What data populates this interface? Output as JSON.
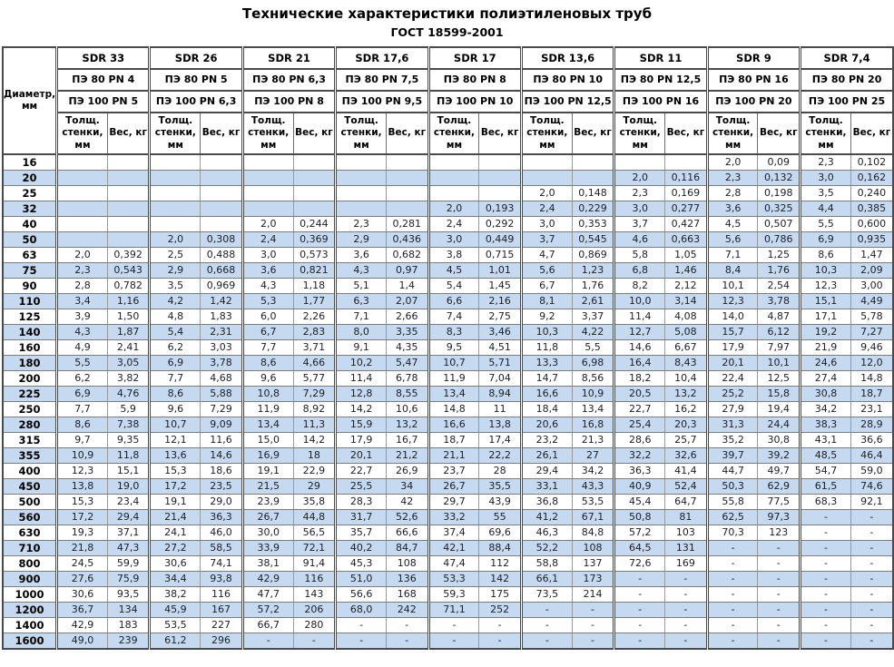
{
  "title": "Технические характеристики полиэтиленовых труб",
  "subtitle": "ГОСТ 18599-2001",
  "colors": {
    "row_alt_background": "#c5d9f1",
    "border_dark": "#4a4a4a",
    "border_light": "#9a9a9a",
    "text": "#1c1f26"
  },
  "table": {
    "diameter_header": "Диаметр, мм",
    "thickness_header": "Толщ. стенки, мм",
    "weight_header": "Вес, кг",
    "groups": [
      {
        "sdr": "SDR 33",
        "pe80": "ПЭ 80 PN 4",
        "pe100": "ПЭ 100 PN 5"
      },
      {
        "sdr": "SDR 26",
        "pe80": "ПЭ 80 PN 5",
        "pe100": "ПЭ 100 PN 6,3"
      },
      {
        "sdr": "SDR 21",
        "pe80": "ПЭ 80 PN 6,3",
        "pe100": "ПЭ 100 PN 8"
      },
      {
        "sdr": "SDR 17,6",
        "pe80": "ПЭ 80 PN 7,5",
        "pe100": "ПЭ 100 PN 9,5"
      },
      {
        "sdr": "SDR 17",
        "pe80": "ПЭ 80 PN 8",
        "pe100": "ПЭ 100 PN 10"
      },
      {
        "sdr": "SDR 13,6",
        "pe80": "ПЭ 80 PN 10",
        "pe100": "ПЭ 100 PN 12,5"
      },
      {
        "sdr": "SDR 11",
        "pe80": "ПЭ 80 PN 12,5",
        "pe100": "ПЭ 100 PN 16"
      },
      {
        "sdr": "SDR 9",
        "pe80": "ПЭ 80 PN 16",
        "pe100": "ПЭ 100 PN 20"
      },
      {
        "sdr": "SDR 7,4",
        "pe80": "ПЭ 80 PN 20",
        "pe100": "ПЭ 100 PN 25"
      }
    ],
    "rows": [
      {
        "d": "16",
        "v": [
          "",
          "",
          "",
          "",
          "",
          "",
          "",
          "",
          "",
          "",
          "",
          "",
          "",
          "",
          "2,0",
          "0,09",
          "2,3",
          "0,102"
        ]
      },
      {
        "d": "20",
        "v": [
          "",
          "",
          "",
          "",
          "",
          "",
          "",
          "",
          "",
          "",
          "",
          "",
          "2,0",
          "0,116",
          "2,3",
          "0,132",
          "3,0",
          "0,162"
        ]
      },
      {
        "d": "25",
        "v": [
          "",
          "",
          "",
          "",
          "",
          "",
          "",
          "",
          "",
          "",
          "2,0",
          "0,148",
          "2,3",
          "0,169",
          "2,8",
          "0,198",
          "3,5",
          "0,240"
        ]
      },
      {
        "d": "32",
        "v": [
          "",
          "",
          "",
          "",
          "",
          "",
          "",
          "",
          "2,0",
          "0,193",
          "2,4",
          "0,229",
          "3,0",
          "0,277",
          "3,6",
          "0,325",
          "4,4",
          "0,385"
        ]
      },
      {
        "d": "40",
        "v": [
          "",
          "",
          "",
          "",
          "2,0",
          "0,244",
          "2,3",
          "0,281",
          "2,4",
          "0,292",
          "3,0",
          "0,353",
          "3,7",
          "0,427",
          "4,5",
          "0,507",
          "5,5",
          "0,600"
        ]
      },
      {
        "d": "50",
        "v": [
          "",
          "",
          "2,0",
          "0,308",
          "2,4",
          "0,369",
          "2,9",
          "0,436",
          "3,0",
          "0,449",
          "3,7",
          "0,545",
          "4,6",
          "0,663",
          "5,6",
          "0,786",
          "6,9",
          "0,935"
        ]
      },
      {
        "d": "63",
        "v": [
          "2,0",
          "0,392",
          "2,5",
          "0,488",
          "3,0",
          "0,573",
          "3,6",
          "0,682",
          "3,8",
          "0,715",
          "4,7",
          "0,869",
          "5,8",
          "1,05",
          "7,1",
          "1,25",
          "8,6",
          "1,47"
        ]
      },
      {
        "d": "75",
        "v": [
          "2,3",
          "0,543",
          "2,9",
          "0,668",
          "3,6",
          "0,821",
          "4,3",
          "0,97",
          "4,5",
          "1,01",
          "5,6",
          "1,23",
          "6,8",
          "1,46",
          "8,4",
          "1,76",
          "10,3",
          "2,09"
        ]
      },
      {
        "d": "90",
        "v": [
          "2,8",
          "0,782",
          "3,5",
          "0,969",
          "4,3",
          "1,18",
          "5,1",
          "1,4",
          "5,4",
          "1,45",
          "6,7",
          "1,76",
          "8,2",
          "2,12",
          "10,1",
          "2,54",
          "12,3",
          "3,00"
        ]
      },
      {
        "d": "110",
        "v": [
          "3,4",
          "1,16",
          "4,2",
          "1,42",
          "5,3",
          "1,77",
          "6,3",
          "2,07",
          "6,6",
          "2,16",
          "8,1",
          "2,61",
          "10,0",
          "3,14",
          "12,3",
          "3,78",
          "15,1",
          "4,49"
        ]
      },
      {
        "d": "125",
        "v": [
          "3,9",
          "1,50",
          "4,8",
          "1,83",
          "6,0",
          "2,26",
          "7,1",
          "2,66",
          "7,4",
          "2,75",
          "9,2",
          "3,37",
          "11,4",
          "4,08",
          "14,0",
          "4,87",
          "17,1",
          "5,78"
        ]
      },
      {
        "d": "140",
        "v": [
          "4,3",
          "1,87",
          "5,4",
          "2,31",
          "6,7",
          "2,83",
          "8,0",
          "3,35",
          "8,3",
          "3,46",
          "10,3",
          "4,22",
          "12,7",
          "5,08",
          "15,7",
          "6,12",
          "19,2",
          "7,27"
        ]
      },
      {
        "d": "160",
        "v": [
          "4,9",
          "2,41",
          "6,2",
          "3,03",
          "7,7",
          "3,71",
          "9,1",
          "4,35",
          "9,5",
          "4,51",
          "11,8",
          "5,5",
          "14,6",
          "6,67",
          "17,9",
          "7,97",
          "21,9",
          "9,46"
        ]
      },
      {
        "d": "180",
        "v": [
          "5,5",
          "3,05",
          "6,9",
          "3,78",
          "8,6",
          "4,66",
          "10,2",
          "5,47",
          "10,7",
          "5,71",
          "13,3",
          "6,98",
          "16,4",
          "8,43",
          "20,1",
          "10,1",
          "24,6",
          "12,0"
        ]
      },
      {
        "d": "200",
        "v": [
          "6,2",
          "3,82",
          "7,7",
          "4,68",
          "9,6",
          "5,77",
          "11,4",
          "6,78",
          "11,9",
          "7,04",
          "14,7",
          "8,56",
          "18,2",
          "10,4",
          "22,4",
          "12,5",
          "27,4",
          "14,8"
        ]
      },
      {
        "d": "225",
        "v": [
          "6,9",
          "4,76",
          "8,6",
          "5,88",
          "10,8",
          "7,29",
          "12,8",
          "8,55",
          "13,4",
          "8,94",
          "16,6",
          "10,9",
          "20,5",
          "13,2",
          "25,2",
          "15,8",
          "30,8",
          "18,7"
        ]
      },
      {
        "d": "250",
        "v": [
          "7,7",
          "5,9",
          "9,6",
          "7,29",
          "11,9",
          "8,92",
          "14,2",
          "10,6",
          "14,8",
          "11",
          "18,4",
          "13,4",
          "22,7",
          "16,2",
          "27,9",
          "19,4",
          "34,2",
          "23,1"
        ]
      },
      {
        "d": "280",
        "v": [
          "8,6",
          "7,38",
          "10,7",
          "9,09",
          "13,4",
          "11,3",
          "15,9",
          "13,2",
          "16,6",
          "13,8",
          "20,6",
          "16,8",
          "25,4",
          "20,3",
          "31,3",
          "24,4",
          "38,3",
          "28,9"
        ]
      },
      {
        "d": "315",
        "v": [
          "9,7",
          "9,35",
          "12,1",
          "11,6",
          "15,0",
          "14,2",
          "17,9",
          "16,7",
          "18,7",
          "17,4",
          "23,2",
          "21,3",
          "28,6",
          "25,7",
          "35,2",
          "30,8",
          "43,1",
          "36,6"
        ]
      },
      {
        "d": "355",
        "v": [
          "10,9",
          "11,8",
          "13,6",
          "14,6",
          "16,9",
          "18",
          "20,1",
          "21,2",
          "21,1",
          "22,2",
          "26,1",
          "27",
          "32,2",
          "32,6",
          "39,7",
          "39,2",
          "48,5",
          "46,4"
        ]
      },
      {
        "d": "400",
        "v": [
          "12,3",
          "15,1",
          "15,3",
          "18,6",
          "19,1",
          "22,9",
          "22,7",
          "26,9",
          "23,7",
          "28",
          "29,4",
          "34,2",
          "36,3",
          "41,4",
          "44,7",
          "49,7",
          "54,7",
          "59,0"
        ]
      },
      {
        "d": "450",
        "v": [
          "13,8",
          "19,0",
          "17,2",
          "23,5",
          "21,5",
          "29",
          "25,5",
          "34",
          "26,7",
          "35,5",
          "33,1",
          "43,3",
          "40,9",
          "52,4",
          "50,3",
          "62,9",
          "61,5",
          "74,6"
        ]
      },
      {
        "d": "500",
        "v": [
          "15,3",
          "23,4",
          "19,1",
          "29,0",
          "23,9",
          "35,8",
          "28,3",
          "42",
          "29,7",
          "43,9",
          "36,8",
          "53,5",
          "45,4",
          "64,7",
          "55,8",
          "77,5",
          "68,3",
          "92,1"
        ]
      },
      {
        "d": "560",
        "v": [
          "17,2",
          "29,4",
          "21,4",
          "36,3",
          "26,7",
          "44,8",
          "31,7",
          "52,6",
          "33,2",
          "55",
          "41,2",
          "67,1",
          "50,8",
          "81",
          "62,5",
          "97,3",
          "-",
          "-"
        ]
      },
      {
        "d": "630",
        "v": [
          "19,3",
          "37,1",
          "24,1",
          "46,0",
          "30,0",
          "56,5",
          "35,7",
          "66,6",
          "37,4",
          "69,6",
          "46,3",
          "84,8",
          "57,2",
          "103",
          "70,3",
          "123",
          "-",
          "-"
        ]
      },
      {
        "d": "710",
        "v": [
          "21,8",
          "47,3",
          "27,2",
          "58,5",
          "33,9",
          "72,1",
          "40,2",
          "84,7",
          "42,1",
          "88,4",
          "52,2",
          "108",
          "64,5",
          "131",
          "-",
          "-",
          "-",
          "-"
        ]
      },
      {
        "d": "800",
        "v": [
          "24,5",
          "59,9",
          "30,6",
          "74,1",
          "38,1",
          "91,4",
          "45,3",
          "108",
          "47,4",
          "112",
          "58,8",
          "137",
          "72,6",
          "169",
          "-",
          "-",
          "-",
          "-"
        ]
      },
      {
        "d": "900",
        "v": [
          "27,6",
          "75,9",
          "34,4",
          "93,8",
          "42,9",
          "116",
          "51,0",
          "136",
          "53,3",
          "142",
          "66,1",
          "173",
          "-",
          "-",
          "-",
          "-",
          "-",
          "-"
        ]
      },
      {
        "d": "1000",
        "v": [
          "30,6",
          "93,5",
          "38,2",
          "116",
          "47,7",
          "143",
          "56,6",
          "168",
          "59,3",
          "175",
          "73,5",
          "214",
          "-",
          "-",
          "-",
          "-",
          "-",
          "-"
        ]
      },
      {
        "d": "1200",
        "v": [
          "36,7",
          "134",
          "45,9",
          "167",
          "57,2",
          "206",
          "68,0",
          "242",
          "71,1",
          "252",
          "-",
          "-",
          "-",
          "-",
          "-",
          "-",
          "-",
          "-"
        ]
      },
      {
        "d": "1400",
        "v": [
          "42,9",
          "183",
          "53,5",
          "227",
          "66,7",
          "280",
          "-",
          "-",
          "-",
          "-",
          "-",
          "-",
          "-",
          "-",
          "-",
          "-",
          "-",
          "-"
        ]
      },
      {
        "d": "1600",
        "v": [
          "49,0",
          "239",
          "61,2",
          "296",
          "-",
          "-",
          "-",
          "-",
          "-",
          "-",
          "-",
          "-",
          "-",
          "-",
          "-",
          "-",
          "-",
          "-"
        ]
      }
    ]
  }
}
